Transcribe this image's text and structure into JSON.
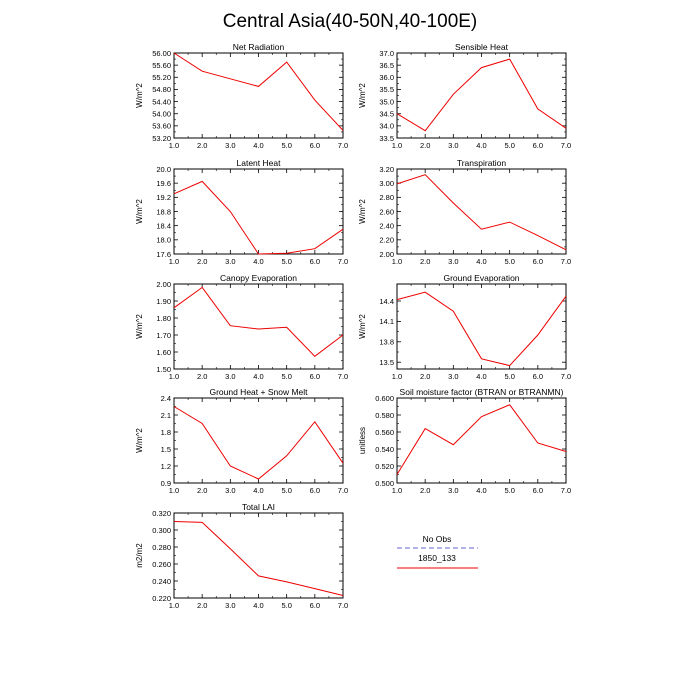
{
  "title": "Central Asia(40-50N,40-100E)",
  "legend": {
    "entries": [
      {
        "label": "No Obs",
        "color": "#9999dd",
        "style": "dashed"
      },
      {
        "label": "1850_133",
        "color": "#ee0000",
        "style": "solid"
      }
    ]
  },
  "chart_data": [
    {
      "type": "line",
      "title": "Net Radiation",
      "ylabel": "W/m^2",
      "x": [
        1,
        2,
        3,
        4,
        5,
        6,
        7
      ],
      "xticks": [
        "1.0",
        "2.0",
        "3.0",
        "4.0",
        "5.0",
        "6.0",
        "7.0"
      ],
      "ylim": [
        53.2,
        56.0
      ],
      "yticks": [
        "53.20",
        "53.60",
        "54.00",
        "54.40",
        "54.80",
        "55.20",
        "55.60",
        "56.00"
      ],
      "series": [
        {
          "name": "1850_133",
          "color": "#ee0000",
          "values": [
            56.0,
            55.4,
            55.15,
            54.9,
            55.7,
            54.45,
            53.45
          ]
        }
      ]
    },
    {
      "type": "line",
      "title": "Sensible Heat",
      "ylabel": "W/m^2",
      "x": [
        1,
        2,
        3,
        4,
        5,
        6,
        7
      ],
      "xticks": [
        "1.0",
        "2.0",
        "3.0",
        "4.0",
        "5.0",
        "6.0",
        "7.0"
      ],
      "ylim": [
        33.5,
        37.0
      ],
      "yticks": [
        "33.5",
        "34.0",
        "34.5",
        "35.0",
        "35.5",
        "36.0",
        "36.5",
        "37.0"
      ],
      "series": [
        {
          "name": "1850_133",
          "color": "#ee0000",
          "values": [
            34.5,
            33.8,
            35.3,
            36.4,
            36.75,
            34.7,
            33.9
          ]
        }
      ]
    },
    {
      "type": "line",
      "title": "Latent Heat",
      "ylabel": "W/m^2",
      "x": [
        1,
        2,
        3,
        4,
        5,
        6,
        7
      ],
      "xticks": [
        "1.0",
        "2.0",
        "3.0",
        "4.0",
        "5.0",
        "6.0",
        "7.0"
      ],
      "ylim": [
        17.6,
        20.0
      ],
      "yticks": [
        "17.6",
        "18.0",
        "18.4",
        "18.8",
        "19.2",
        "19.6",
        "20.0"
      ],
      "series": [
        {
          "name": "1850_133",
          "color": "#ee0000",
          "values": [
            19.3,
            19.65,
            18.8,
            17.6,
            17.62,
            17.75,
            18.3
          ]
        }
      ]
    },
    {
      "type": "line",
      "title": "Transpiration",
      "ylabel": "W/m^2",
      "x": [
        1,
        2,
        3,
        4,
        5,
        6,
        7
      ],
      "xticks": [
        "1.0",
        "2.0",
        "3.0",
        "4.0",
        "5.0",
        "6.0",
        "7.0"
      ],
      "ylim": [
        2.0,
        3.2
      ],
      "yticks": [
        "2.00",
        "2.20",
        "2.40",
        "2.60",
        "2.80",
        "3.00",
        "3.20"
      ],
      "series": [
        {
          "name": "1850_133",
          "color": "#ee0000",
          "values": [
            2.99,
            3.12,
            2.72,
            2.35,
            2.45,
            2.26,
            2.06
          ]
        }
      ]
    },
    {
      "type": "line",
      "title": "Canopy Evaporation",
      "ylabel": "W/m^2",
      "x": [
        1,
        2,
        3,
        4,
        5,
        6,
        7
      ],
      "xticks": [
        "1.0",
        "2.0",
        "3.0",
        "4.0",
        "5.0",
        "6.0",
        "7.0"
      ],
      "ylim": [
        1.5,
        2.0
      ],
      "yticks": [
        "1.50",
        "1.60",
        "1.70",
        "1.80",
        "1.90",
        "2.00"
      ],
      "series": [
        {
          "name": "1850_133",
          "color": "#ee0000",
          "values": [
            1.86,
            1.98,
            1.755,
            1.735,
            1.745,
            1.575,
            1.7
          ]
        }
      ]
    },
    {
      "type": "line",
      "title": "Ground Evaporation",
      "ylabel": "W/m^2",
      "x": [
        1,
        2,
        3,
        4,
        5,
        6,
        7
      ],
      "xticks": [
        "1.0",
        "2.0",
        "3.0",
        "4.0",
        "5.0",
        "6.0",
        "7.0"
      ],
      "ylim": [
        13.4,
        14.65
      ],
      "yticks": [
        "13.5",
        "13.8",
        "14.1",
        "14.4"
      ],
      "ytickvalues": [
        13.5,
        13.8,
        14.1,
        14.4
      ],
      "series": [
        {
          "name": "1850_133",
          "color": "#ee0000",
          "values": [
            14.42,
            14.53,
            14.25,
            13.55,
            13.45,
            13.9,
            14.47
          ]
        }
      ]
    },
    {
      "type": "line",
      "title": "Ground Heat + Snow Melt",
      "ylabel": "W/m^2",
      "x": [
        1,
        2,
        3,
        4,
        5,
        6,
        7
      ],
      "xticks": [
        "1.0",
        "2.0",
        "3.0",
        "4.0",
        "5.0",
        "6.0",
        "7.0"
      ],
      "ylim": [
        0.9,
        2.4
      ],
      "yticks": [
        "0.9",
        "1.2",
        "1.5",
        "1.8",
        "2.1",
        "2.4"
      ],
      "series": [
        {
          "name": "1850_133",
          "color": "#ee0000",
          "values": [
            2.25,
            1.95,
            1.2,
            0.97,
            1.38,
            1.98,
            1.25
          ]
        }
      ]
    },
    {
      "type": "line",
      "title": "Soil moisture factor (BTRAN or BTRANMN)",
      "ylabel": "unitless",
      "x": [
        1,
        2,
        3,
        4,
        5,
        6,
        7
      ],
      "xticks": [
        "1.0",
        "2.0",
        "3.0",
        "4.0",
        "5.0",
        "6.0",
        "7.0"
      ],
      "ylim": [
        0.5,
        0.6
      ],
      "yticks": [
        "0.500",
        "0.520",
        "0.540",
        "0.560",
        "0.580",
        "0.600"
      ],
      "series": [
        {
          "name": "1850_133",
          "color": "#ee0000",
          "values": [
            0.51,
            0.564,
            0.545,
            0.578,
            0.592,
            0.547,
            0.537
          ]
        }
      ]
    },
    {
      "type": "line",
      "title": "Total LAI",
      "ylabel": "m2/m2",
      "x": [
        1,
        2,
        3,
        4,
        5,
        6,
        7
      ],
      "xticks": [
        "1.0",
        "2.0",
        "3.0",
        "4.0",
        "5.0",
        "6.0",
        "7.0"
      ],
      "ylim": [
        0.22,
        0.32
      ],
      "yticks": [
        "0.220",
        "0.240",
        "0.260",
        "0.280",
        "0.300",
        "0.320"
      ],
      "series": [
        {
          "name": "1850_133",
          "color": "#ee0000",
          "values": [
            0.31,
            0.309,
            0.278,
            0.246,
            0.239,
            0.231,
            0.223
          ]
        }
      ]
    }
  ]
}
